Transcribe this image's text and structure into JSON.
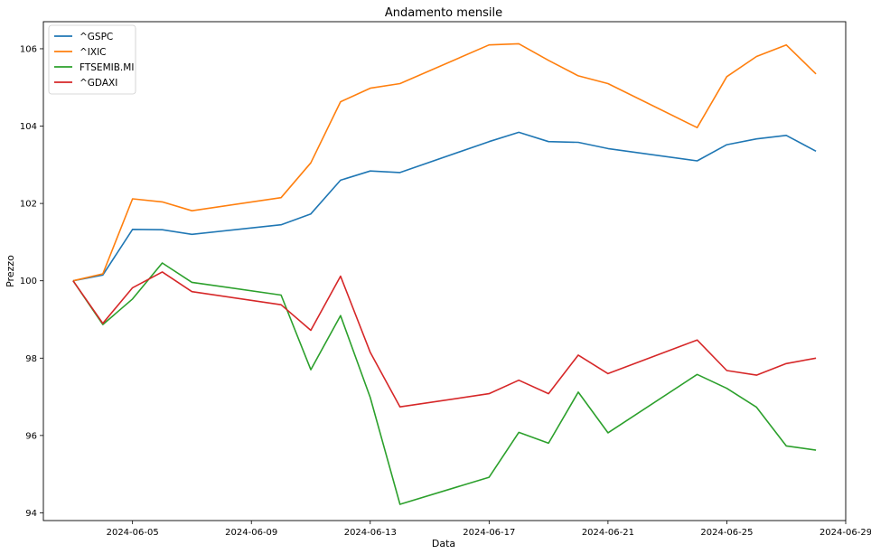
{
  "chart_data": {
    "type": "line",
    "title": "Andamento mensile",
    "xlabel": "Data",
    "ylabel": "Prezzo",
    "x": [
      "2024-06-03",
      "2024-06-04",
      "2024-06-05",
      "2024-06-06",
      "2024-06-07",
      "2024-06-10",
      "2024-06-11",
      "2024-06-12",
      "2024-06-13",
      "2024-06-14",
      "2024-06-17",
      "2024-06-18",
      "2024-06-19",
      "2024-06-20",
      "2024-06-21",
      "2024-06-24",
      "2024-06-25",
      "2024-06-26",
      "2024-06-27",
      "2024-06-28"
    ],
    "xlim": [
      "2024-06-02",
      "2024-06-29"
    ],
    "ylim": [
      93.8,
      106.7
    ],
    "x_ticks": [
      "2024-06-05",
      "2024-06-09",
      "2024-06-13",
      "2024-06-17",
      "2024-06-21",
      "2024-06-25",
      "2024-06-29"
    ],
    "y_ticks": [
      94,
      96,
      98,
      100,
      102,
      104,
      106
    ],
    "grid": false,
    "legend_position": "top-left",
    "series": [
      {
        "name": "^GSPC",
        "color": "#1f77b4",
        "values": [
          100.0,
          100.15,
          101.33,
          101.32,
          101.2,
          101.45,
          101.73,
          102.6,
          102.84,
          102.8,
          103.6,
          103.84,
          103.6,
          103.58,
          103.42,
          103.1,
          103.52,
          103.67,
          103.76,
          103.35
        ]
      },
      {
        "name": "^IXIC",
        "color": "#ff7f0e",
        "values": [
          100.0,
          100.18,
          102.12,
          102.04,
          101.81,
          102.15,
          103.05,
          104.63,
          104.98,
          105.1,
          106.1,
          106.13,
          105.7,
          105.3,
          105.1,
          103.96,
          105.28,
          105.8,
          106.1,
          105.35
        ]
      },
      {
        "name": "FTSEMIB.MI",
        "color": "#2ca02c",
        "values": [
          100.0,
          98.87,
          99.53,
          100.46,
          99.96,
          99.63,
          97.7,
          99.1,
          96.98,
          94.22,
          94.92,
          96.08,
          95.8,
          97.12,
          96.07,
          97.58,
          97.22,
          96.73,
          95.73,
          95.62
        ]
      },
      {
        "name": "^GDAXI",
        "color": "#d62728",
        "values": [
          100.0,
          98.9,
          99.82,
          100.23,
          99.72,
          99.38,
          98.72,
          100.12,
          98.15,
          96.74,
          97.08,
          97.43,
          97.08,
          98.08,
          97.6,
          98.47,
          97.68,
          97.56,
          97.86,
          98.0
        ]
      }
    ]
  }
}
